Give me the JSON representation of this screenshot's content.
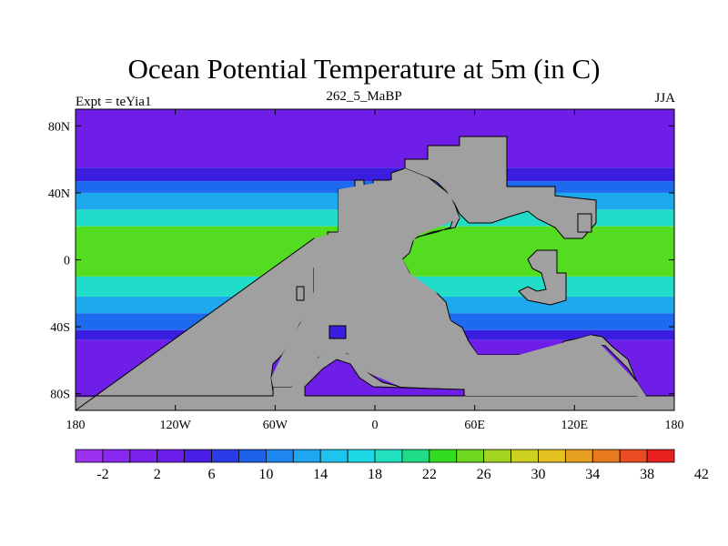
{
  "title": "Ocean Potential Temperature at 5m (in C)",
  "subtitle": "262_5_MaBP",
  "left_label": "Expt = teYia1",
  "right_label": "JJA",
  "map": {
    "lat_ticks": [
      "80N",
      "40N",
      "0",
      "40S",
      "80S"
    ],
    "lon_ticks": [
      "180",
      "120W",
      "60W",
      "0",
      "60E",
      "120E",
      "180"
    ],
    "land_color": "#a0a0a0",
    "zonal_bands": [
      {
        "lat_range": [
          90,
          55
        ],
        "color": "#6e1ee6"
      },
      {
        "lat_range": [
          55,
          47
        ],
        "color": "#3a1ee0"
      },
      {
        "lat_range": [
          47,
          40
        ],
        "color": "#1e6aee"
      },
      {
        "lat_range": [
          40,
          30
        ],
        "color": "#1ea8ee"
      },
      {
        "lat_range": [
          30,
          20
        ],
        "color": "#20dcc8"
      },
      {
        "lat_range": [
          20,
          -10
        ],
        "color": "#54dc20"
      },
      {
        "lat_range": [
          -10,
          -22
        ],
        "color": "#20dcc8"
      },
      {
        "lat_range": [
          -22,
          -32
        ],
        "color": "#1ea8ee"
      },
      {
        "lat_range": [
          -32,
          -42
        ],
        "color": "#1e6aee"
      },
      {
        "lat_range": [
          -42,
          -48
        ],
        "color": "#3a1ee0"
      },
      {
        "lat_range": [
          -48,
          -90
        ],
        "color": "#6e1ee6"
      }
    ]
  },
  "colorbar": {
    "colors": [
      "#9a32f0",
      "#8a28f0",
      "#7a22ec",
      "#6a1ce8",
      "#4a1ee4",
      "#2a3ce8",
      "#1e62ec",
      "#1e86f0",
      "#1ea6f0",
      "#1ec4ee",
      "#1ed8e6",
      "#20e0c0",
      "#20dc88",
      "#34dc20",
      "#6ed820",
      "#a2d420",
      "#ccd020",
      "#e4c020",
      "#e8a020",
      "#e87a20",
      "#e84c20",
      "#e82020"
    ],
    "labels": [
      "-2",
      "2",
      "6",
      "10",
      "14",
      "18",
      "22",
      "26",
      "30",
      "34",
      "38",
      "42"
    ]
  }
}
